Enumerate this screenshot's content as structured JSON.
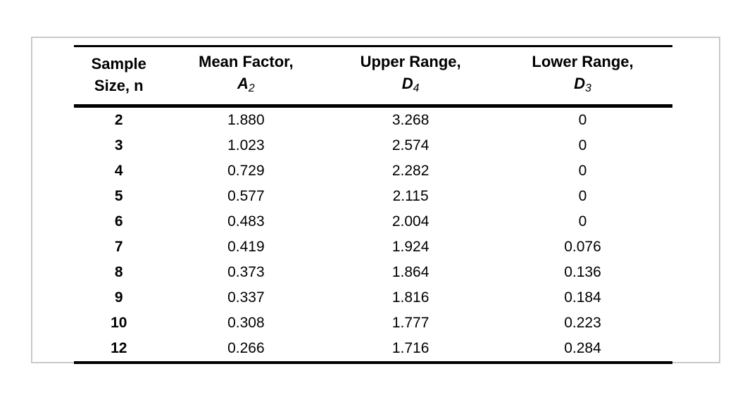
{
  "chart_data": {
    "type": "table",
    "title": "",
    "columns": [
      {
        "line1": "Sample",
        "line2": "Size, n"
      },
      {
        "line1": "Mean Factor,",
        "symbol": "A",
        "sub": "2"
      },
      {
        "line1": "Upper Range,",
        "symbol": "D",
        "sub": "4"
      },
      {
        "line1": "Lower Range,",
        "symbol": "D",
        "sub": "3"
      }
    ],
    "row_keys": [
      "n",
      "a2",
      "d4",
      "d3"
    ],
    "rows": [
      {
        "n": "2",
        "a2": "1.880",
        "d4": "3.268",
        "d3": "0"
      },
      {
        "n": "3",
        "a2": "1.023",
        "d4": "2.574",
        "d3": "0"
      },
      {
        "n": "4",
        "a2": "0.729",
        "d4": "2.282",
        "d3": "0"
      },
      {
        "n": "5",
        "a2": "0.577",
        "d4": "2.115",
        "d3": "0"
      },
      {
        "n": "6",
        "a2": "0.483",
        "d4": "2.004",
        "d3": "0"
      },
      {
        "n": "7",
        "a2": "0.419",
        "d4": "1.924",
        "d3": "0.076"
      },
      {
        "n": "8",
        "a2": "0.373",
        "d4": "1.864",
        "d3": "0.136"
      },
      {
        "n": "9",
        "a2": "0.337",
        "d4": "1.816",
        "d3": "0.184"
      },
      {
        "n": "10",
        "a2": "0.308",
        "d4": "1.777",
        "d3": "0.223"
      },
      {
        "n": "12",
        "a2": "0.266",
        "d4": "1.716",
        "d3": "0.284"
      }
    ],
    "layout": {
      "grid": "horizontal-rules-only",
      "column_align": "center"
    }
  },
  "colors": {
    "background": "#ffffff",
    "frame_border": "#c9c9c9",
    "rule": "#000000",
    "text": "#000000"
  }
}
